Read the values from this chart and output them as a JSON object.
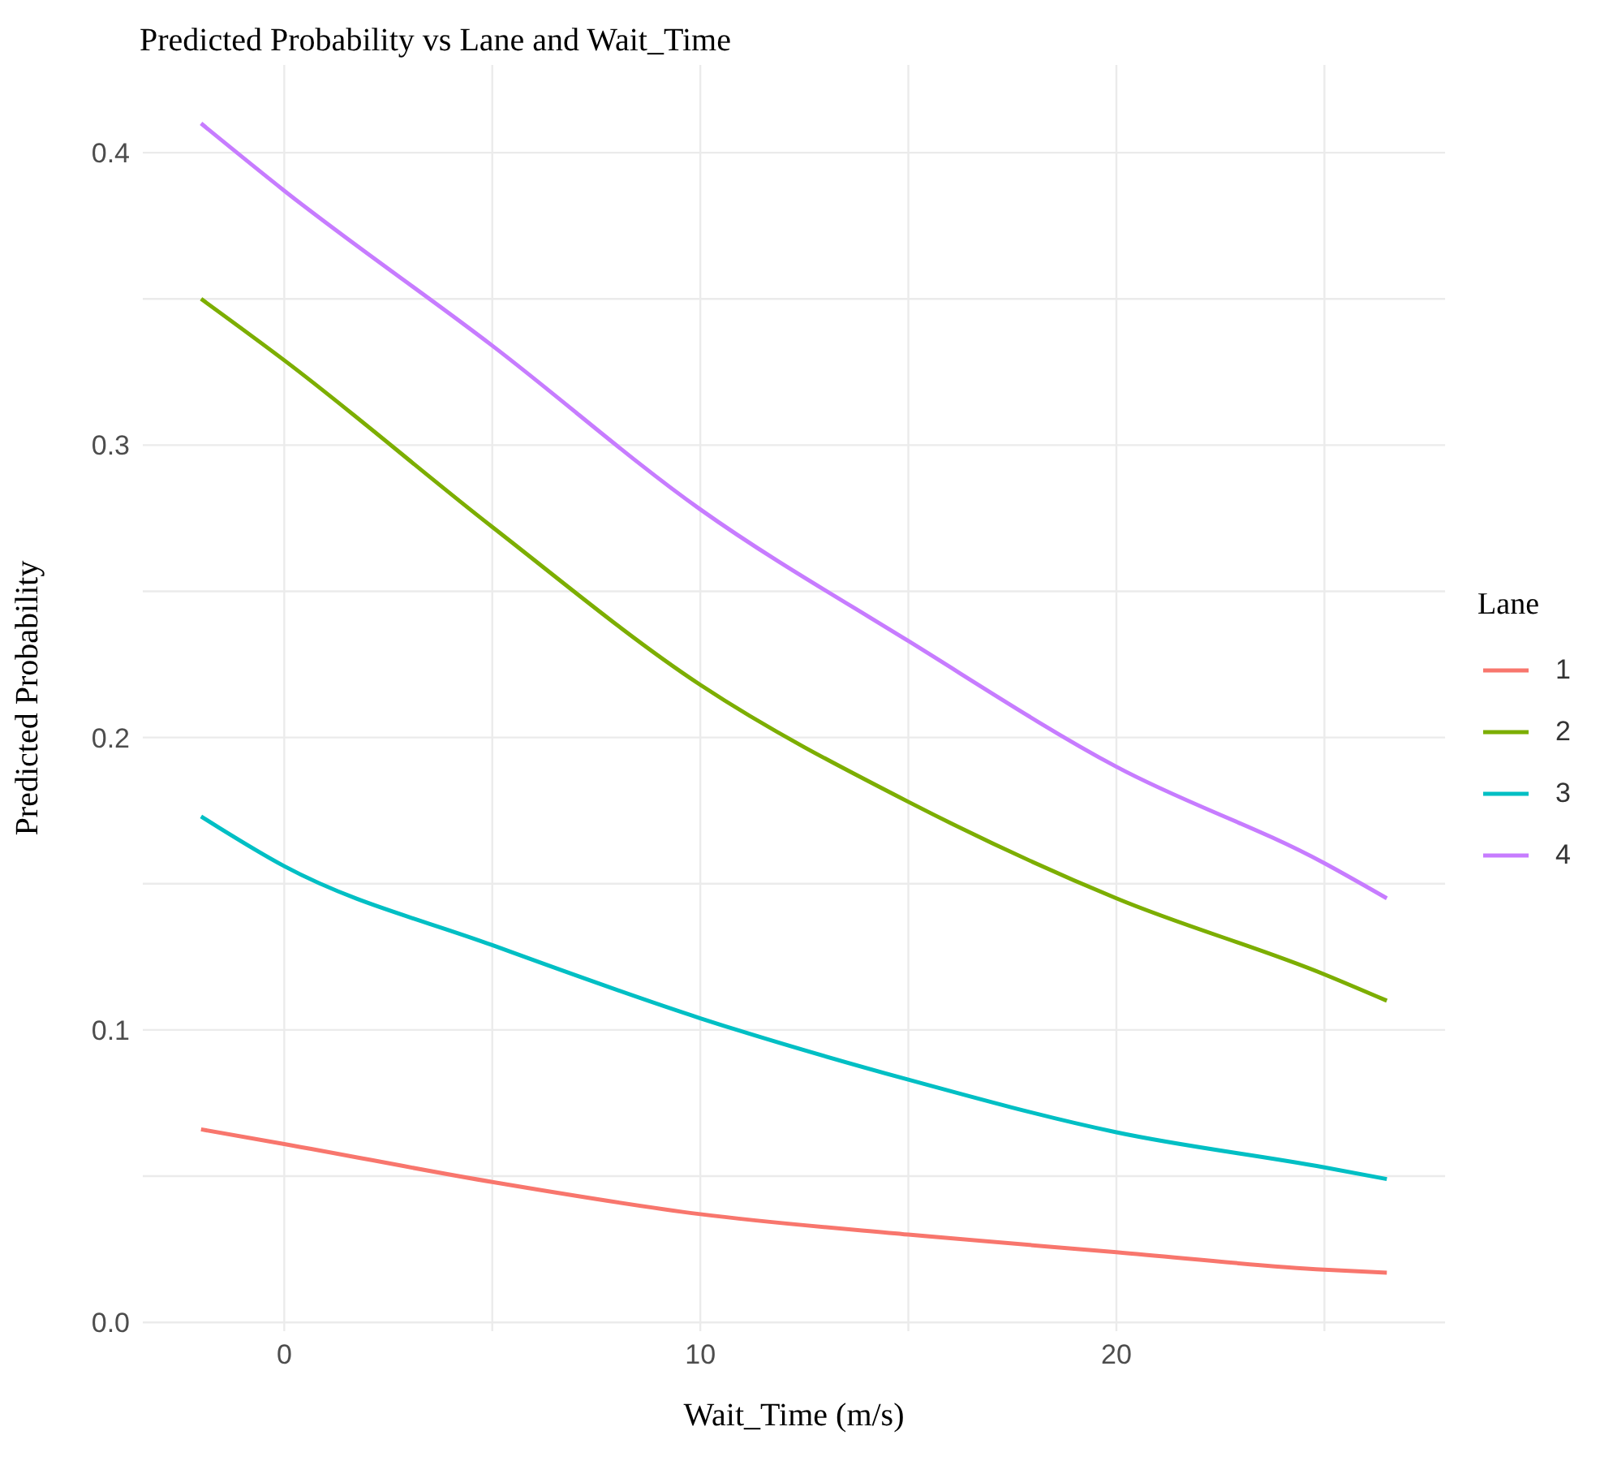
{
  "chart_data": {
    "type": "line",
    "title": "Predicted Probability vs Lane and Wait_Time",
    "xlabel": "Wait_Time (m/s)",
    "ylabel": "Predicted Probability",
    "legend_title": "Lane",
    "legend": "right",
    "grid": true,
    "line_style": "solid",
    "x": [
      -2,
      0,
      5,
      10,
      15,
      20,
      25,
      26.5
    ],
    "series": [
      {
        "name": "1",
        "color": "#f8766d",
        "values": [
          0.066,
          0.061,
          0.048,
          0.037,
          0.03,
          0.024,
          0.018,
          0.017
        ]
      },
      {
        "name": "2",
        "color": "#7cae00",
        "values": [
          0.35,
          0.329,
          0.272,
          0.218,
          0.178,
          0.145,
          0.119,
          0.11
        ]
      },
      {
        "name": "3",
        "color": "#00bfc4",
        "values": [
          0.173,
          0.156,
          0.129,
          0.104,
          0.083,
          0.065,
          0.053,
          0.049
        ]
      },
      {
        "name": "4",
        "color": "#c77cff",
        "values": [
          0.41,
          0.387,
          0.334,
          0.278,
          0.233,
          0.19,
          0.157,
          0.145
        ]
      }
    ],
    "xlim": [
      -3.4,
      27.9
    ],
    "xticks": [
      0,
      {
        "value": 5,
        "label": null
      },
      10,
      {
        "value": 15,
        "label": null
      },
      20,
      {
        "value": 25,
        "label": null
      }
    ],
    "ylim": [
      -0.003,
      0.43
    ],
    "yticks": [
      "0.0",
      {
        "value": 0.05,
        "label": null
      },
      0.1,
      {
        "value": 0.15,
        "label": null
      },
      0.2,
      {
        "value": 0.25,
        "label": null
      },
      0.3,
      {
        "value": 0.35,
        "label": null
      },
      0.4
    ]
  }
}
